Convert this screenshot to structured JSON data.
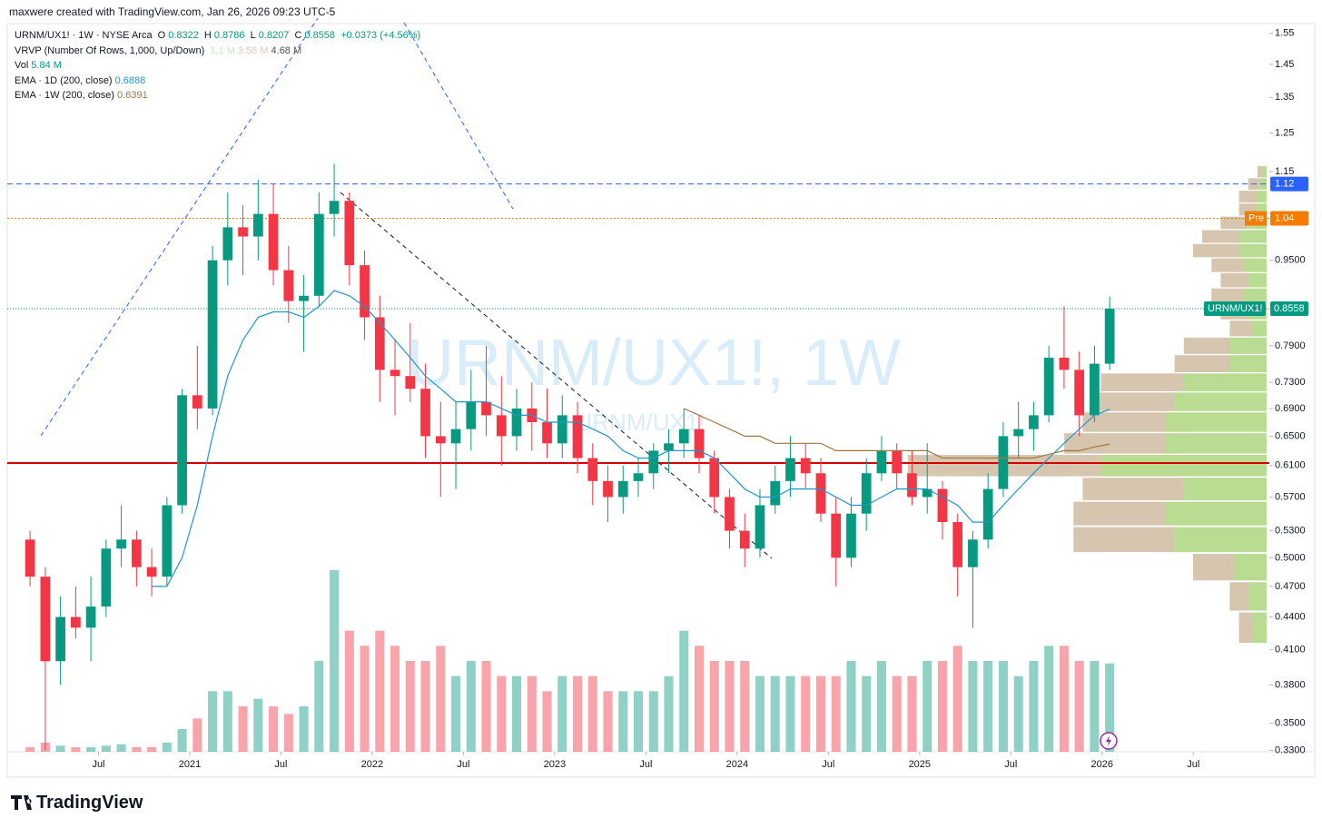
{
  "header": "maxwere created with TradingView.com, Jan 26, 2026 09:23 UTC-5",
  "footer": "TradingView",
  "chart_data": {
    "type": "candlestick",
    "log_scale": true,
    "watermark": {
      "title": "URNM/UX1!, 1W",
      "subtitle": "URNM/UX1!"
    },
    "legend": {
      "symbol": "URNM/UX1! · 1W · NYSE Arca",
      "o_label": "O",
      "open": 0.8322,
      "h_label": "H",
      "high": 0.8786,
      "l_label": "L",
      "low": 0.8207,
      "c_label": "C",
      "change": "+0.0373 (+4.56%)",
      "vrvp": {
        "name": "VRVP (Number Of Rows, 1,000, Up/Down)",
        "values": [
          "1.1 M",
          "3.58 M",
          "4.68 M"
        ]
      },
      "vol_name": "Vol",
      "vol_value": "5.84 M"
    },
    "x": [
      "2020-02",
      "2020-03",
      "2020-04",
      "2020-05",
      "2020-06",
      "2020-07",
      "2020-08",
      "2020-09",
      "2020-10",
      "2020-11",
      "2020-12",
      "2021-01",
      "2021-02",
      "2021-03",
      "2021-04",
      "2021-05",
      "2021-06",
      "2021-07",
      "2021-08",
      "2021-09",
      "2021-10",
      "2021-11",
      "2021-12",
      "2022-01",
      "2022-02",
      "2022-03",
      "2022-04",
      "2022-05",
      "2022-06",
      "2022-07",
      "2022-08",
      "2022-09",
      "2022-10",
      "2022-11",
      "2022-12",
      "2023-01",
      "2023-02",
      "2023-03",
      "2023-04",
      "2023-05",
      "2023-06",
      "2023-07",
      "2023-08",
      "2023-09",
      "2023-10",
      "2023-11",
      "2023-12",
      "2024-01",
      "2024-02",
      "2024-03",
      "2024-04",
      "2024-05",
      "2024-06",
      "2024-07",
      "2024-08",
      "2024-09",
      "2024-10",
      "2024-11",
      "2024-12",
      "2025-01",
      "2025-02",
      "2025-03",
      "2025-04",
      "2025-05",
      "2025-06",
      "2025-07",
      "2025-08",
      "2025-09",
      "2025-10",
      "2025-11",
      "2025-12",
      "2026-01"
    ],
    "ohlc": {
      "name": "URNM/UX1!",
      "up_color": "#089981",
      "down_color": "#f23645",
      "open": [
        0.52,
        0.48,
        0.4,
        0.44,
        0.43,
        0.45,
        0.51,
        0.52,
        0.49,
        0.48,
        0.56,
        0.71,
        0.69,
        0.95,
        1.02,
        1.0,
        1.05,
        0.93,
        0.87,
        0.88,
        1.05,
        1.08,
        0.94,
        0.84,
        0.75,
        0.74,
        0.72,
        0.65,
        0.64,
        0.66,
        0.7,
        0.68,
        0.65,
        0.69,
        0.67,
        0.64,
        0.68,
        0.62,
        0.59,
        0.57,
        0.59,
        0.6,
        0.63,
        0.64,
        0.66,
        0.62,
        0.57,
        0.53,
        0.51,
        0.56,
        0.59,
        0.62,
        0.6,
        0.55,
        0.5,
        0.55,
        0.6,
        0.63,
        0.6,
        0.57,
        0.58,
        0.54,
        0.49,
        0.52,
        0.58,
        0.65,
        0.66,
        0.68,
        0.77,
        0.75,
        0.68,
        0.76
      ],
      "high": [
        0.53,
        0.49,
        0.46,
        0.47,
        0.48,
        0.52,
        0.56,
        0.53,
        0.51,
        0.57,
        0.72,
        0.79,
        0.98,
        1.1,
        1.07,
        1.13,
        1.12,
        0.98,
        0.92,
        1.1,
        1.17,
        1.1,
        0.97,
        0.88,
        0.8,
        0.83,
        0.76,
        0.7,
        0.7,
        0.75,
        0.79,
        0.74,
        0.72,
        0.73,
        0.72,
        0.71,
        0.7,
        0.64,
        0.61,
        0.61,
        0.62,
        0.64,
        0.66,
        0.69,
        0.68,
        0.63,
        0.58,
        0.55,
        0.58,
        0.61,
        0.65,
        0.64,
        0.62,
        0.57,
        0.57,
        0.62,
        0.65,
        0.64,
        0.63,
        0.64,
        0.59,
        0.55,
        0.53,
        0.6,
        0.67,
        0.7,
        0.7,
        0.79,
        0.86,
        0.78,
        0.79,
        0.8786
      ],
      "low": [
        0.47,
        0.33,
        0.38,
        0.42,
        0.4,
        0.44,
        0.49,
        0.47,
        0.46,
        0.47,
        0.55,
        0.66,
        0.68,
        0.9,
        0.92,
        0.95,
        0.9,
        0.83,
        0.78,
        0.86,
        1.0,
        0.9,
        0.8,
        0.7,
        0.68,
        0.7,
        0.62,
        0.57,
        0.58,
        0.63,
        0.65,
        0.61,
        0.63,
        0.63,
        0.62,
        0.62,
        0.6,
        0.56,
        0.54,
        0.55,
        0.57,
        0.58,
        0.6,
        0.62,
        0.6,
        0.55,
        0.51,
        0.49,
        0.5,
        0.55,
        0.57,
        0.58,
        0.54,
        0.47,
        0.49,
        0.53,
        0.59,
        0.58,
        0.56,
        0.55,
        0.52,
        0.46,
        0.43,
        0.51,
        0.57,
        0.62,
        0.63,
        0.67,
        0.72,
        0.65,
        0.67,
        0.75
      ],
      "close": [
        0.48,
        0.4,
        0.44,
        0.43,
        0.45,
        0.51,
        0.52,
        0.49,
        0.48,
        0.56,
        0.71,
        0.69,
        0.95,
        1.02,
        1.0,
        1.05,
        0.93,
        0.87,
        0.88,
        1.05,
        1.08,
        0.94,
        0.84,
        0.75,
        0.74,
        0.72,
        0.65,
        0.64,
        0.66,
        0.7,
        0.68,
        0.65,
        0.69,
        0.67,
        0.64,
        0.68,
        0.62,
        0.59,
        0.57,
        0.59,
        0.6,
        0.63,
        0.64,
        0.66,
        0.62,
        0.57,
        0.53,
        0.51,
        0.56,
        0.59,
        0.62,
        0.6,
        0.55,
        0.5,
        0.55,
        0.6,
        0.63,
        0.6,
        0.57,
        0.58,
        0.54,
        0.49,
        0.52,
        0.58,
        0.65,
        0.66,
        0.68,
        0.77,
        0.75,
        0.68,
        0.76,
        0.8558
      ]
    },
    "volume": [
      0.3,
      0.6,
      0.4,
      0.3,
      0.3,
      0.4,
      0.5,
      0.3,
      0.3,
      0.6,
      1.5,
      2.2,
      4,
      4,
      3,
      3.5,
      3,
      2.5,
      3,
      6,
      12,
      8,
      7,
      8,
      7,
      6,
      6,
      7,
      5,
      6,
      6,
      5,
      5,
      5,
      4,
      5,
      5,
      5,
      4,
      4,
      4,
      4,
      5,
      8,
      7,
      6,
      6,
      6,
      5,
      5,
      5,
      5,
      5,
      5,
      6,
      5,
      6,
      5,
      5,
      6,
      6,
      7,
      6,
      6,
      6,
      5,
      6,
      7,
      7,
      6,
      6,
      5.84
    ],
    "ema": [
      {
        "name": "EMA · 1D (200, close)",
        "color": "#2196c8",
        "values": [
          null,
          null,
          null,
          null,
          null,
          null,
          null,
          null,
          0.47,
          0.47,
          0.5,
          0.56,
          0.65,
          0.74,
          0.8,
          0.84,
          0.85,
          0.85,
          0.84,
          0.86,
          0.89,
          0.88,
          0.86,
          0.83,
          0.8,
          0.77,
          0.74,
          0.72,
          0.7,
          0.7,
          0.7,
          0.69,
          0.68,
          0.68,
          0.67,
          0.67,
          0.67,
          0.66,
          0.65,
          0.63,
          0.62,
          0.62,
          0.63,
          0.63,
          0.63,
          0.62,
          0.6,
          0.58,
          0.57,
          0.57,
          0.58,
          0.58,
          0.58,
          0.57,
          0.56,
          0.56,
          0.57,
          0.58,
          0.58,
          0.58,
          0.57,
          0.56,
          0.54,
          0.54,
          0.56,
          0.58,
          0.6,
          0.62,
          0.64,
          0.66,
          0.68,
          0.6888
        ]
      },
      {
        "name": "EMA · 1W (200, close)",
        "color": "#a07840",
        "values": [
          null,
          null,
          null,
          null,
          null,
          null,
          null,
          null,
          null,
          null,
          null,
          null,
          null,
          null,
          null,
          null,
          null,
          null,
          null,
          null,
          null,
          null,
          null,
          null,
          null,
          null,
          null,
          null,
          null,
          null,
          null,
          null,
          null,
          null,
          null,
          null,
          null,
          null,
          null,
          null,
          null,
          null,
          null,
          0.69,
          0.68,
          0.67,
          0.66,
          0.65,
          0.65,
          0.64,
          0.64,
          0.64,
          0.64,
          0.63,
          0.63,
          0.63,
          0.63,
          0.63,
          0.63,
          0.63,
          0.62,
          0.62,
          0.62,
          0.62,
          0.62,
          0.62,
          0.62,
          0.625,
          0.63,
          0.63,
          0.635,
          0.6391
        ]
      }
    ],
    "profile": {
      "up_color": "rgba(139,195,74,0.6)",
      "down_color": "rgba(180,150,110,0.55)",
      "prices": [
        0.43,
        0.46,
        0.49,
        0.52,
        0.55,
        0.58,
        0.61,
        0.64,
        0.67,
        0.7,
        0.73,
        0.76,
        0.79,
        0.82,
        0.85,
        0.88,
        0.91,
        0.94,
        0.97,
        1.0,
        1.03,
        1.06,
        1.09,
        1.12,
        1.15
      ],
      "up": [
        15,
        20,
        35,
        100,
        110,
        90,
        180,
        110,
        110,
        100,
        90,
        40,
        40,
        15,
        20,
        25,
        20,
        25,
        30,
        30,
        20,
        12,
        12,
        8,
        5
      ],
      "down": [
        15,
        20,
        45,
        110,
        100,
        110,
        210,
        110,
        90,
        90,
        90,
        60,
        50,
        25,
        30,
        35,
        30,
        35,
        50,
        40,
        30,
        18,
        18,
        12,
        5
      ]
    },
    "levels": [
      {
        "value": 1.12,
        "color": "#2962ff",
        "style": "dashed"
      },
      {
        "name": "Pre",
        "value": 1.04,
        "color": "#f57c00",
        "style": "dotted"
      }
    ],
    "last_color": "#089981",
    "xlim": [
      "2020-01",
      "2026-12"
    ],
    "xticks": [
      {
        "value": "2020-07",
        "label": "Jul"
      },
      {
        "value": "2021-01",
        "label": "2021"
      },
      {
        "value": "2021-07",
        "label": "Jul"
      },
      {
        "value": "2022-01",
        "label": "2022"
      },
      {
        "value": "2022-07",
        "label": "Jul"
      },
      {
        "value": "2023-01",
        "label": "2023"
      },
      {
        "value": "2023-07",
        "label": "Jul"
      },
      {
        "value": "2024-01",
        "label": "2024"
      },
      {
        "value": "2024-07",
        "label": "Jul"
      },
      {
        "value": "2025-01",
        "label": "2025"
      },
      {
        "value": "2025-07",
        "label": "Jul"
      },
      {
        "value": "2026-01",
        "label": "2026"
      },
      {
        "value": "2026-07",
        "label": "Jul"
      }
    ],
    "ylim": [
      0.329,
      1.64
    ],
    "yticks": [
      1.55,
      1.45,
      1.35,
      1.25,
      1.15,
      {
        "value": 0.95,
        "label": "0.9500"
      },
      {
        "value": 0.79,
        "label": "0.7900"
      },
      {
        "value": 0.73,
        "label": "0.7300"
      },
      {
        "value": 0.69,
        "label": "0.6900"
      },
      {
        "value": 0.65,
        "label": "0.6500"
      },
      {
        "value": 0.61,
        "label": "0.6100"
      },
      {
        "value": 0.57,
        "label": "0.5700"
      },
      {
        "value": 0.53,
        "label": "0.5300"
      },
      {
        "value": 0.5,
        "label": "0.5000"
      },
      {
        "value": 0.47,
        "label": "0.4700"
      },
      {
        "value": 0.44,
        "label": "0.4400"
      },
      {
        "value": 0.41,
        "label": "0.4100"
      },
      {
        "value": 0.38,
        "label": "0.3800"
      },
      {
        "value": 0.35,
        "label": "0.3500"
      },
      {
        "value": 0.33,
        "label": "0.3300"
      }
    ]
  }
}
